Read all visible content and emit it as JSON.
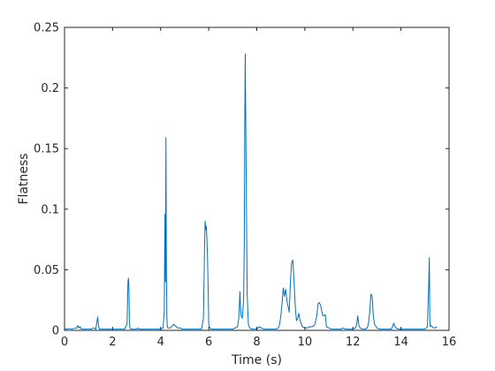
{
  "chart_data": {
    "type": "line",
    "xlabel": "Time (s)",
    "ylabel": "Flatness",
    "xlim": [
      0,
      16
    ],
    "ylim": [
      0,
      0.25
    ],
    "grid": false,
    "x_ticks": [
      {
        "value": 0,
        "label": "0"
      },
      {
        "value": 2,
        "label": "2"
      },
      {
        "value": 4,
        "label": "4"
      },
      {
        "value": 6,
        "label": "6"
      },
      {
        "value": 8,
        "label": "8"
      },
      {
        "value": 10,
        "label": "10"
      },
      {
        "value": 12,
        "label": "12"
      },
      {
        "value": 14,
        "label": "14"
      },
      {
        "value": 16,
        "label": "16"
      }
    ],
    "y_ticks": [
      {
        "value": 0,
        "label": "0"
      },
      {
        "value": 0.05,
        "label": "0.05"
      },
      {
        "value": 0.1,
        "label": "0.1"
      },
      {
        "value": 0.15,
        "label": "0.15"
      },
      {
        "value": 0.2,
        "label": "0.2"
      },
      {
        "value": 0.25,
        "label": "0.25"
      }
    ],
    "series": [
      {
        "color": "#0072bd",
        "x": [
          0.0,
          0.1,
          0.2,
          0.3,
          0.4,
          0.5,
          0.55,
          0.6,
          0.65,
          0.7,
          0.8,
          0.9,
          1.0,
          1.1,
          1.2,
          1.3,
          1.38,
          1.42,
          1.46,
          1.5,
          1.6,
          1.7,
          1.8,
          1.9,
          2.0,
          2.1,
          2.2,
          2.3,
          2.4,
          2.5,
          2.6,
          2.62,
          2.64,
          2.66,
          2.68,
          2.7,
          2.72,
          2.76,
          2.8,
          2.9,
          3.0,
          3.05,
          3.1,
          3.2,
          3.3,
          3.4,
          3.5,
          3.6,
          3.7,
          3.8,
          3.9,
          4.0,
          4.1,
          4.15,
          4.18,
          4.2,
          4.22,
          4.24,
          4.26,
          4.28,
          4.3,
          4.35,
          4.4,
          4.5,
          4.55,
          4.6,
          4.65,
          4.7,
          4.8,
          4.9,
          5.0,
          5.1,
          5.2,
          5.3,
          5.4,
          5.5,
          5.6,
          5.7,
          5.78,
          5.82,
          5.85,
          5.88,
          5.9,
          5.92,
          5.95,
          5.98,
          6.0,
          6.05,
          6.1,
          6.2,
          6.3,
          6.4,
          6.5,
          6.6,
          6.7,
          6.8,
          6.9,
          7.0,
          7.1,
          7.2,
          7.25,
          7.3,
          7.32,
          7.35,
          7.4,
          7.45,
          7.48,
          7.5,
          7.52,
          7.55,
          7.58,
          7.6,
          7.65,
          7.7,
          7.8,
          7.9,
          8.0,
          8.05,
          8.1,
          8.2,
          8.3,
          8.4,
          8.5,
          8.6,
          8.7,
          8.8,
          8.9,
          8.95,
          9.0,
          9.05,
          9.1,
          9.15,
          9.2,
          9.25,
          9.3,
          9.35,
          9.4,
          9.45,
          9.5,
          9.55,
          9.6,
          9.65,
          9.7,
          9.75,
          9.8,
          9.9,
          10.0,
          10.1,
          10.2,
          10.3,
          10.4,
          10.5,
          10.55,
          10.6,
          10.65,
          10.7,
          10.75,
          10.8,
          10.85,
          10.9,
          11.0,
          11.1,
          11.2,
          11.3,
          11.4,
          11.5,
          11.6,
          11.7,
          11.8,
          11.9,
          12.0,
          12.1,
          12.15,
          12.2,
          12.25,
          12.3,
          12.4,
          12.5,
          12.6,
          12.65,
          12.7,
          12.75,
          12.8,
          12.85,
          12.9,
          13.0,
          13.1,
          13.2,
          13.3,
          13.4,
          13.5,
          13.6,
          13.65,
          13.7,
          13.75,
          13.8,
          13.9,
          14.0,
          14.1,
          14.2,
          14.3,
          14.4,
          14.5,
          14.6,
          14.7,
          14.8,
          14.9,
          15.0,
          15.1,
          15.15,
          15.18,
          15.2,
          15.22,
          15.25,
          15.3,
          15.35,
          15.4,
          15.5
        ],
        "y": [
          0.001,
          0.001,
          0.0015,
          0.001,
          0.0015,
          0.002,
          0.004,
          0.002,
          0.003,
          0.001,
          0.001,
          0.001,
          0.001,
          0.001,
          0.002,
          0.001,
          0.011,
          0.003,
          0.001,
          0.001,
          0.001,
          0.001,
          0.001,
          0.001,
          0.001,
          0.001,
          0.001,
          0.001,
          0.001,
          0.001,
          0.005,
          0.02,
          0.04,
          0.043,
          0.035,
          0.008,
          0.002,
          0.001,
          0.001,
          0.001,
          0.001,
          0.002,
          0.001,
          0.001,
          0.001,
          0.001,
          0.001,
          0.001,
          0.001,
          0.001,
          0.001,
          0.001,
          0.002,
          0.015,
          0.096,
          0.04,
          0.159,
          0.05,
          0.01,
          0.003,
          0.002,
          0.002,
          0.002,
          0.004,
          0.005,
          0.004,
          0.003,
          0.002,
          0.002,
          0.001,
          0.001,
          0.001,
          0.001,
          0.001,
          0.001,
          0.001,
          0.001,
          0.001,
          0.01,
          0.06,
          0.09,
          0.083,
          0.086,
          0.078,
          0.06,
          0.03,
          0.005,
          0.002,
          0.001,
          0.001,
          0.001,
          0.001,
          0.001,
          0.001,
          0.001,
          0.001,
          0.001,
          0.001,
          0.002,
          0.003,
          0.01,
          0.032,
          0.02,
          0.012,
          0.01,
          0.025,
          0.07,
          0.17,
          0.228,
          0.15,
          0.08,
          0.03,
          0.005,
          0.002,
          0.001,
          0.001,
          0.001,
          0.002,
          0.003,
          0.002,
          0.001,
          0.001,
          0.001,
          0.001,
          0.001,
          0.001,
          0.002,
          0.005,
          0.012,
          0.022,
          0.035,
          0.028,
          0.034,
          0.025,
          0.02,
          0.015,
          0.04,
          0.056,
          0.058,
          0.04,
          0.02,
          0.008,
          0.01,
          0.014,
          0.008,
          0.003,
          0.002,
          0.002,
          0.003,
          0.003,
          0.004,
          0.012,
          0.022,
          0.023,
          0.021,
          0.016,
          0.012,
          0.012,
          0.013,
          0.003,
          0.002,
          0.001,
          0.001,
          0.001,
          0.001,
          0.001,
          0.002,
          0.001,
          0.001,
          0.001,
          0.001,
          0.002,
          0.004,
          0.012,
          0.004,
          0.002,
          0.001,
          0.001,
          0.002,
          0.006,
          0.015,
          0.03,
          0.028,
          0.012,
          0.005,
          0.002,
          0.001,
          0.001,
          0.001,
          0.001,
          0.001,
          0.001,
          0.003,
          0.006,
          0.003,
          0.002,
          0.001,
          0.001,
          0.001,
          0.001,
          0.001,
          0.001,
          0.001,
          0.001,
          0.001,
          0.001,
          0.001,
          0.001,
          0.003,
          0.035,
          0.06,
          0.01,
          0.003,
          0.004,
          0.003,
          0.002,
          0.002,
          0.003
        ]
      }
    ]
  }
}
